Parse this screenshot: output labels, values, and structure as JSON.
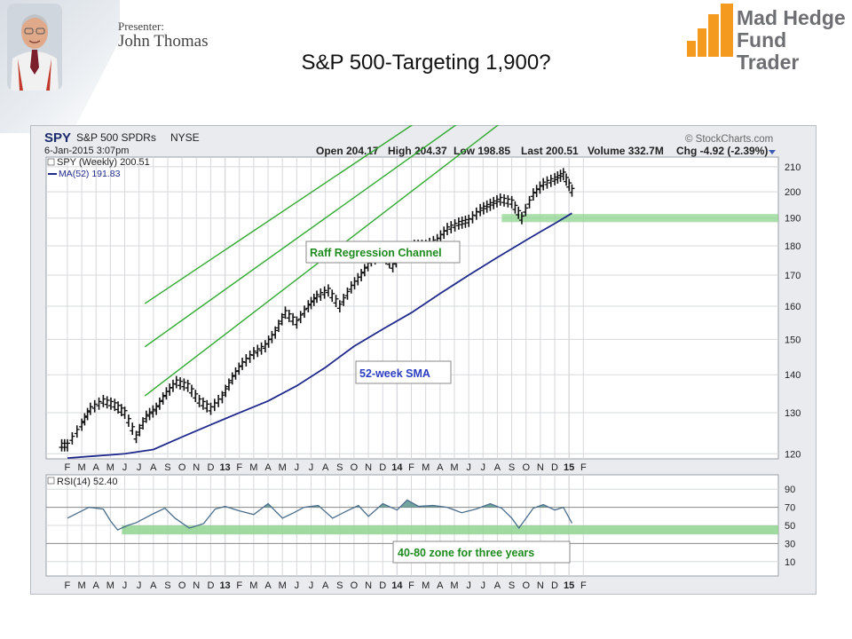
{
  "header": {
    "presenter_label": "Presenter:",
    "presenter_name": "John Thomas",
    "slide_title": "S&P 500-Targeting 1,900?",
    "logo_line1": "Mad Hedge",
    "logo_line2": "Fund Trader"
  },
  "colors": {
    "price_bars": "#111111",
    "sma_line": "#1f2a8c",
    "channel_lines": "#2faa2f",
    "rsi_line": "#4a6d8c",
    "rsi_fill": "#4f8f86",
    "zone_fill": "#8fd48f",
    "panel_bg": "#ffffff",
    "grid": "#d6d8dc",
    "logo_orange": "#f39a1f"
  },
  "chart_data": {
    "type": "line",
    "symbol": "SPY",
    "name": "S&P 500 SPDRs",
    "exchange": "NYSE",
    "date_label": "6-Jan-2015 3:07pm",
    "source": "© StockCharts.com",
    "quote": {
      "open": "Open 204.17",
      "high": "High 204.37",
      "low": "Low 198.85",
      "last": "Last 200.51",
      "volume": "Volume 332.7M",
      "chg": "Chg -4.92 (-2.39%)"
    },
    "legend": [
      "SPY (Weekly) 200.51",
      "MA(52) 191.83"
    ],
    "rsi_legend": "RSI(14) 52.40",
    "x_ticks": [
      "F",
      "M",
      "A",
      "M",
      "J",
      "J",
      "A",
      "S",
      "O",
      "N",
      "D",
      "13",
      "F",
      "M",
      "A",
      "M",
      "J",
      "J",
      "A",
      "S",
      "O",
      "N",
      "D",
      "14",
      "F",
      "M",
      "A",
      "M",
      "J",
      "J",
      "A",
      "S",
      "O",
      "N",
      "D",
      "15",
      "F"
    ],
    "y_ticks": [
      210,
      200,
      190,
      180,
      170,
      160,
      150,
      140,
      130,
      120
    ],
    "ylim": [
      118,
      214
    ],
    "rsi_ticks": [
      90,
      70,
      50,
      30,
      10
    ],
    "rsi_ylim": [
      0,
      100
    ],
    "annotations": [
      "Raff Regression Channel",
      "52-week SMA",
      "40-80 zone for three years"
    ],
    "series": [
      {
        "name": "SPY (Weekly)",
        "x": [
          0,
          1,
          1.6,
          2.5,
          3.3,
          4,
          4.8,
          5.5,
          6.2,
          6.9,
          7.6,
          8.4,
          9.2,
          10,
          10.8,
          11.5,
          12.2,
          13,
          13.8,
          14.5,
          15.2,
          16,
          16.8,
          17.4,
          18.2,
          19,
          19.8,
          20.5,
          21.2,
          22,
          22.7,
          23.4,
          24.2,
          25,
          25.8,
          26.5,
          27.3,
          28,
          28.8,
          29.5,
          30.2,
          31,
          31.7,
          32.5,
          33.2,
          34,
          34.6,
          35.2
        ],
        "y": [
          122,
          127,
          131,
          133,
          132,
          130,
          124,
          129,
          131,
          135,
          138,
          137,
          133,
          131,
          134,
          139,
          143,
          146,
          148,
          152,
          158,
          155,
          160,
          163,
          165,
          160,
          166,
          170,
          175,
          177,
          173,
          178,
          180,
          180,
          182,
          186,
          188,
          189,
          193,
          195,
          197,
          196,
          190,
          199,
          203,
          205,
          207,
          200.51
        ]
      },
      {
        "name": "MA(52)",
        "x": [
          0,
          2,
          4,
          6,
          8,
          10,
          12,
          14,
          16,
          18,
          20,
          22,
          24,
          26,
          28,
          30,
          32,
          33,
          34,
          35.2
        ],
        "y": [
          119,
          119.5,
          120,
          121,
          124,
          127,
          130,
          133,
          137,
          142,
          148,
          153,
          158,
          164,
          170,
          176,
          182,
          185,
          188,
          191.83
        ]
      }
    ],
    "channel": {
      "slope_per_tick": 3.95,
      "mid_start": 126.5,
      "upper_start": 139.5,
      "lower_start": 113
    },
    "rsi": {
      "x": [
        0,
        1,
        1.5,
        2.5,
        3,
        3.5,
        4.2,
        4.8,
        5.4,
        6,
        6.8,
        7.5,
        8.5,
        9.5,
        10.3,
        11,
        12,
        13,
        14,
        15,
        15.8,
        16.5,
        17.5,
        18.5,
        19.5,
        20.3,
        21,
        22,
        23,
        23.7,
        24.5,
        25.5,
        26.5,
        27.5,
        28.5,
        29.5,
        30.3,
        31,
        31.5,
        32.5,
        33.2,
        34,
        34.6,
        35.2
      ],
      "y": [
        58,
        66,
        70,
        68,
        55,
        45,
        50,
        53,
        58,
        63,
        69,
        58,
        47,
        52,
        68,
        71,
        66,
        62,
        74,
        58,
        64,
        70,
        72,
        58,
        66,
        72,
        60,
        74,
        67,
        78,
        71,
        72,
        70,
        64,
        68,
        74,
        69,
        58,
        47,
        69,
        73,
        67,
        70,
        52.4
      ]
    },
    "zone": [
      40,
      50
    ]
  }
}
